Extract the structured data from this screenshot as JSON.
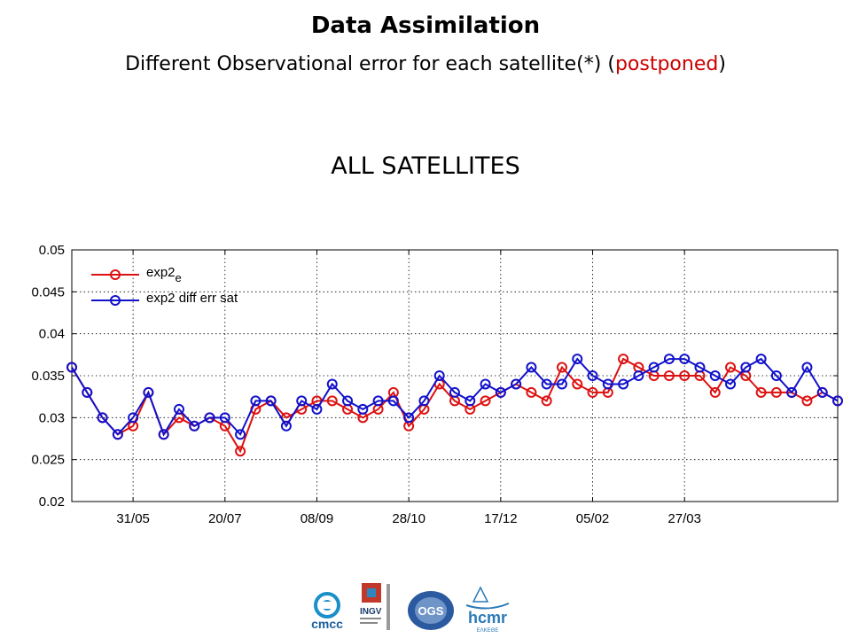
{
  "slide": {
    "title": "Data Assimilation",
    "subtitle_main": "Different Observational error for each satellite(*) (",
    "subtitle_accent": "postponed",
    "subtitle_end": ")",
    "section_heading": "ALL SATELLITES"
  },
  "colors": {
    "accent": "#cc0000",
    "series1": "#dd1111",
    "series2": "#1111cc"
  },
  "logos": {
    "cmcc": "cmcc",
    "ingv": "INGV",
    "ogs": "OGS",
    "hcmr": "hcmr",
    "hcmr_sub": "ΕΛΚΕΘΕ",
    "ingv_sub": "Istituto Nazionale di Geofisica e Vulcanologia"
  },
  "chart_data": {
    "type": "line",
    "x": [
      1,
      2,
      3,
      4,
      5,
      6,
      7,
      8,
      9,
      10,
      11,
      12,
      13,
      14,
      15,
      16,
      17,
      18,
      19,
      20,
      21,
      22,
      23,
      24,
      25,
      26,
      27,
      28,
      29,
      30,
      31,
      32,
      33,
      34,
      35,
      36,
      37,
      38,
      39,
      40,
      41,
      42,
      43,
      44,
      45,
      46,
      47,
      48,
      49,
      50,
      51
    ],
    "xlim": [
      1,
      51
    ],
    "x_ticks": [
      {
        "x": 5,
        "label": "31/05"
      },
      {
        "x": 11,
        "label": "20/07"
      },
      {
        "x": 17,
        "label": "08/09"
      },
      {
        "x": 23,
        "label": "28/10"
      },
      {
        "x": 29,
        "label": "17/12"
      },
      {
        "x": 35,
        "label": "05/02"
      },
      {
        "x": 41,
        "label": "27/03"
      }
    ],
    "ylim": [
      0.02,
      0.05
    ],
    "y_ticks": [
      "0.02",
      "0.025",
      "0.03",
      "0.035",
      "0.04",
      "0.045",
      "0.05"
    ],
    "grid": true,
    "legend_position": "top-left",
    "series": [
      {
        "name": "exp2",
        "name_subscript": "e",
        "color": "#dd1111",
        "values": [
          0.036,
          0.033,
          0.03,
          0.028,
          0.029,
          0.033,
          0.028,
          0.03,
          0.029,
          0.03,
          0.029,
          0.026,
          0.031,
          0.032,
          0.03,
          0.031,
          0.032,
          0.032,
          0.031,
          0.03,
          0.031,
          0.033,
          0.029,
          0.031,
          0.034,
          0.032,
          0.031,
          0.032,
          0.033,
          0.034,
          0.033,
          0.032,
          0.036,
          0.034,
          0.033,
          0.033,
          0.037,
          0.036,
          0.035,
          0.035,
          0.035,
          0.035,
          0.033,
          0.036,
          0.035,
          0.033,
          0.033,
          0.033,
          0.032,
          0.033,
          0.032
        ]
      },
      {
        "name": "exp2 diff err sat",
        "color": "#1111cc",
        "values": [
          0.036,
          0.033,
          0.03,
          0.028,
          0.03,
          0.033,
          0.028,
          0.031,
          0.029,
          0.03,
          0.03,
          0.028,
          0.032,
          0.032,
          0.029,
          0.032,
          0.031,
          0.034,
          0.032,
          0.031,
          0.032,
          0.032,
          0.03,
          0.032,
          0.035,
          0.033,
          0.032,
          0.034,
          0.033,
          0.034,
          0.036,
          0.034,
          0.034,
          0.037,
          0.035,
          0.034,
          0.034,
          0.035,
          0.036,
          0.037,
          0.037,
          0.036,
          0.035,
          0.034,
          0.036,
          0.037,
          0.035,
          0.033,
          0.036,
          0.033,
          0.032
        ]
      }
    ]
  }
}
